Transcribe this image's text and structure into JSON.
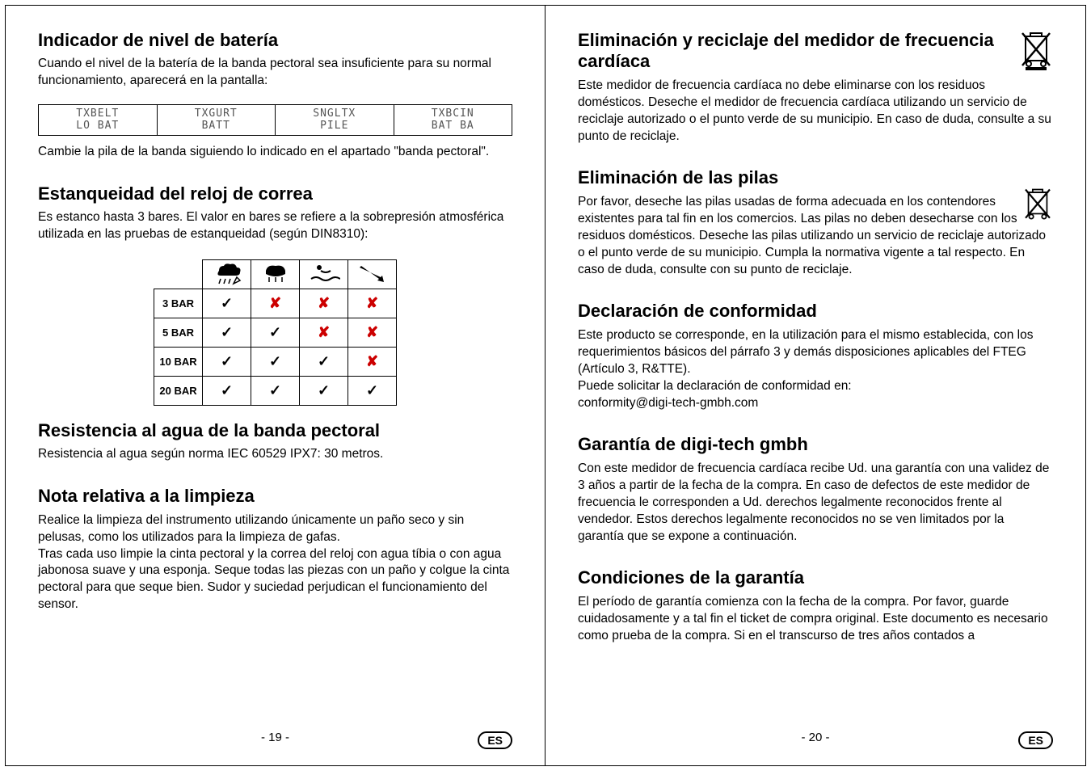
{
  "left": {
    "sec1": {
      "title": "Indicador de nivel de batería",
      "p1": "Cuando el nivel de la batería de la banda pectoral sea insuficiente para su normal funcionamiento, aparecerá en la pantalla:",
      "cells": [
        [
          "TXBELT",
          "TXGURT",
          "SNGLTX",
          "TXBCIN"
        ],
        [
          "LO BAT",
          "BATT",
          "PILE",
          "BAT BA"
        ]
      ],
      "p2": "Cambie la pila de la banda siguiendo lo indicado en el apartado \"banda pectoral\"."
    },
    "sec2": {
      "title": "Estanqueidad del reloj de correa",
      "p1": "Es estanco hasta 3 bares.  El valor en bares se refiere a la sobrepresión atmosférica utilizada en las pruebas de estanqueidad (según DIN8310):",
      "rows": [
        "3 BAR",
        "5 BAR",
        "10 BAR",
        "20 BAR"
      ],
      "matrix": [
        [
          "y",
          "n",
          "n",
          "n"
        ],
        [
          "y",
          "y",
          "n",
          "n"
        ],
        [
          "y",
          "y",
          "y",
          "n"
        ],
        [
          "y",
          "y",
          "y",
          "y"
        ]
      ]
    },
    "sec3": {
      "title": "Resistencia al agua de la banda pectoral",
      "p1": "Resistencia al agua según norma IEC 60529 IPX7: 30 metros."
    },
    "sec4": {
      "title": "Nota relativa a la limpieza",
      "p1": "Realice la limpieza del instrumento utilizando únicamente un paño seco y sin pelusas, como los utilizados para la limpieza de gafas.",
      "p2": "Tras cada uso limpie la cinta pectoral y la correa del reloj con agua tíbia o con agua jabonosa suave y una esponja. Seque todas las piezas con un paño y colgue la cinta pectoral para que seque bien. Sudor y suciedad perjudican el funcionamiento del sensor."
    },
    "pagenum": "- 19 -",
    "es": "ES"
  },
  "right": {
    "sec1": {
      "title": "Eliminación y reciclaje del medidor de frecuencia cardíaca",
      "p1": "Este medidor de frecuencia cardíaca no debe eliminarse con los residuos domésticos. Deseche el medidor de frecuencia cardíaca utilizando un servicio de reciclaje autorizado o el punto verde de su municipio. En caso de duda, consulte a su punto de reciclaje."
    },
    "sec2": {
      "title": "Eliminación de las pilas",
      "p1": "Por favor, deseche las pilas usadas de forma adecuada en los contendores existentes para tal fin en los comercios. Las pilas no deben desecharse con los residuos domésticos. Deseche las pilas utilizando un servicio de reciclaje autorizado o el punto verde de su municipio. Cumpla la normativa vigente a tal respecto. En caso de duda, consulte con su punto de reciclaje."
    },
    "sec3": {
      "title": "Declaración de conformidad",
      "p1": "Este producto se corresponde, en la utilización para el mismo establecida, con los requerimientos básicos del párrafo 3 y demás disposiciones aplicables del FTEG (Artículo 3, R&TTE).",
      "p2": "Puede solicitar la declaración de conformidad en:",
      "p3": "conformity@digi-tech-gmbh.com"
    },
    "sec4": {
      "title": "Garantía de digi-tech gmbh",
      "p1": "Con este medidor de frecuencia cardíaca recibe Ud. una garantía con una validez de 3 años a partir de la fecha de la compra. En caso de defectos de este medidor de frecuencia le corresponden a Ud. derechos legalmente reconocidos frente al vendedor. Estos derechos legalmente reconocidos no se ven limitados por la garantía que se expone a continuación."
    },
    "sec5": {
      "title": "Condiciones de la garantía",
      "p1": "El período de garantía comienza con la fecha de la compra. Por favor, guarde cuidadosamente y a tal fin el ticket de compra original. Este documento es necesario como prueba de la compra. Si en el transcurso de tres años contados a"
    },
    "pagenum": "- 20 -",
    "es": "ES"
  }
}
